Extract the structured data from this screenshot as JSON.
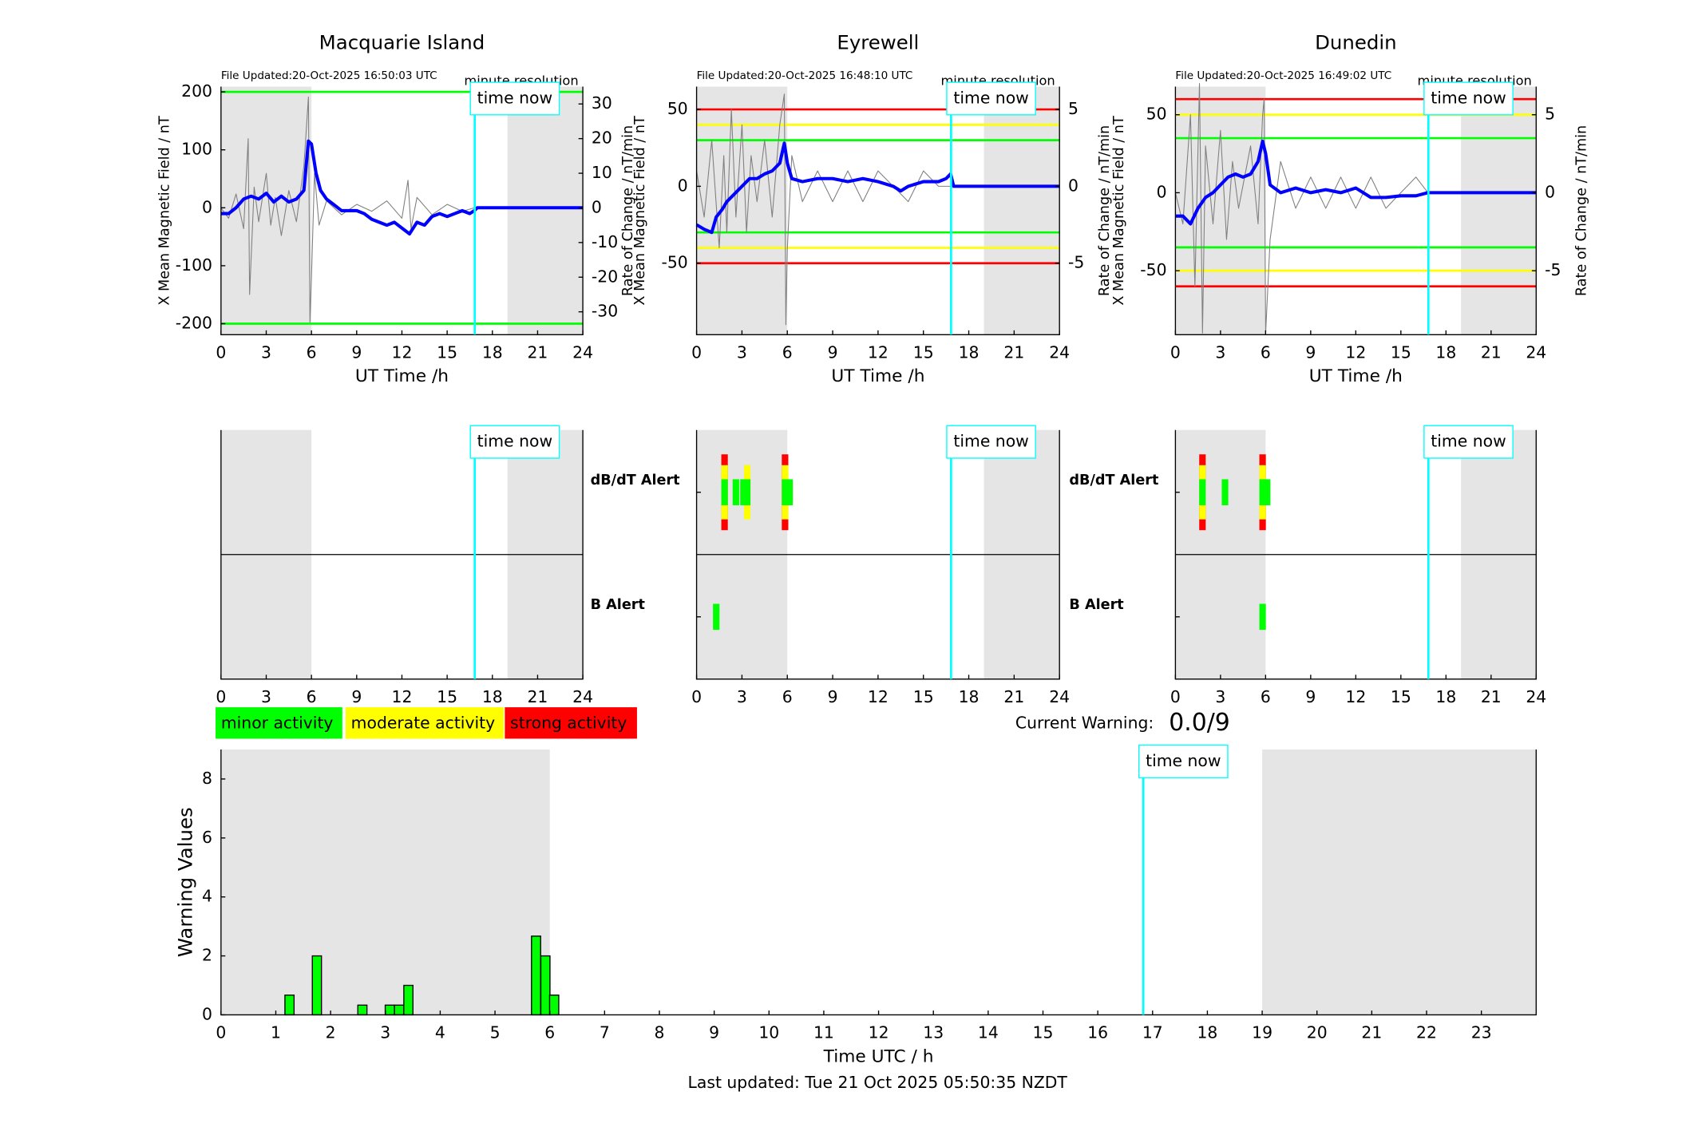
{
  "chart_data": [
    {
      "type": "line",
      "title": "Macquarie Island",
      "file_updated": "File Updated:20-Oct-2025 16:50:03 UTC",
      "resolution": "minute resolution",
      "xlabel": "UT Time /h",
      "ylabel": "X Mean Magnetic Field / nT",
      "y2label": "Rate of Change / nT/min",
      "xlim": [
        0,
        24
      ],
      "xticks": [
        0,
        3,
        6,
        9,
        12,
        15,
        18,
        21,
        24
      ],
      "ylim": [
        -219,
        209
      ],
      "yticks": [
        -200,
        -100,
        0,
        100,
        200
      ],
      "y2lim": [
        -36.6,
        35
      ],
      "y2ticks": [
        -30,
        -20,
        -10,
        0,
        10,
        20,
        30
      ],
      "shade": [
        [
          0,
          6
        ],
        [
          19,
          24
        ]
      ],
      "time_now": 16.83,
      "time_now_label": "time now",
      "time_now_color": "#00ffff",
      "thresholds": [
        {
          "value": 200,
          "color": "#00ff00"
        },
        {
          "value": -200,
          "color": "#00ff00"
        }
      ],
      "series": [
        {
          "axis": "y2",
          "color": "#808080",
          "x": [
            0,
            0.5,
            1,
            1.5,
            1.8,
            1.9,
            2.2,
            2.5,
            3,
            3.3,
            3.6,
            4,
            4.5,
            5,
            5.5,
            5.8,
            5.9,
            6.0,
            6.2,
            6.5,
            7,
            8,
            9,
            10,
            11,
            12,
            12.4,
            12.6,
            13,
            14,
            15,
            16,
            16.8
          ],
          "values": [
            0,
            -3,
            4,
            -6,
            20,
            -25,
            6,
            -4,
            10,
            -5,
            3,
            -8,
            5,
            -4,
            12,
            32,
            -33,
            -20,
            10,
            -5,
            2,
            -2,
            1,
            -1,
            2,
            -3,
            8,
            -6,
            3,
            -2,
            1,
            -1,
            0
          ]
        },
        {
          "axis": "y",
          "color": "#0000ff",
          "x": [
            0,
            0.5,
            1,
            1.5,
            2,
            2.5,
            3,
            3.5,
            4,
            4.5,
            5,
            5.5,
            5.8,
            6,
            6.3,
            6.6,
            7,
            7.5,
            8,
            8.5,
            9,
            9.5,
            10,
            10.5,
            11,
            11.5,
            12,
            12.5,
            13,
            13.5,
            14,
            14.5,
            15,
            15.5,
            16,
            16.5,
            16.8,
            17,
            24
          ],
          "values": [
            -10,
            -10,
            0,
            15,
            20,
            15,
            25,
            10,
            20,
            10,
            15,
            30,
            115,
            110,
            60,
            30,
            15,
            5,
            -5,
            -5,
            -5,
            -10,
            -20,
            -25,
            -30,
            -25,
            -35,
            -45,
            -25,
            -30,
            -15,
            -10,
            -15,
            -10,
            -5,
            -10,
            -5,
            0,
            0
          ]
        }
      ]
    },
    {
      "type": "line",
      "title": "Eyrewell",
      "file_updated": "File Updated:20-Oct-2025 16:48:10 UTC",
      "resolution": "minute resolution",
      "xlabel": "UT Time /h",
      "ylabel": "X Mean Magnetic Field / nT",
      "y2label": "Rate of Change / nT/min",
      "xlim": [
        0,
        24
      ],
      "xticks": [
        0,
        3,
        6,
        9,
        12,
        15,
        18,
        21,
        24
      ],
      "ylim": [
        -96.5,
        64.8
      ],
      "yticks": [
        -50,
        0,
        50
      ],
      "y2lim": [
        -9.65,
        6.48
      ],
      "y2ticks": [
        -5,
        0,
        5
      ],
      "shade": [
        [
          0,
          6
        ],
        [
          19,
          24
        ]
      ],
      "time_now": 16.83,
      "time_now_label": "time now",
      "time_now_color": "#00ffff",
      "thresholds": [
        {
          "value": 50,
          "color": "#ff0000"
        },
        {
          "value": 40,
          "color": "#ffff00"
        },
        {
          "value": 30,
          "color": "#00ff00"
        },
        {
          "value": -30,
          "color": "#00ff00"
        },
        {
          "value": -40,
          "color": "#ffff00"
        },
        {
          "value": -50,
          "color": "#ff0000"
        }
      ],
      "series": [
        {
          "axis": "y2",
          "color": "#808080",
          "x": [
            0,
            0.5,
            1,
            1.5,
            1.8,
            2,
            2.3,
            2.6,
            3,
            3.3,
            3.6,
            4,
            4.5,
            5,
            5.5,
            5.8,
            5.9,
            6,
            6.3,
            7,
            8,
            9,
            10,
            11,
            12,
            13,
            14,
            15,
            16,
            16.8
          ],
          "values": [
            1,
            -2,
            3,
            -4,
            2,
            -3,
            5,
            -2,
            4,
            -3,
            2,
            -1,
            3,
            -2,
            4,
            6,
            -9,
            -4,
            2,
            -1,
            1,
            -1,
            1,
            -1,
            1,
            0,
            -1,
            1,
            0,
            0
          ]
        },
        {
          "axis": "y",
          "color": "#0000ff",
          "x": [
            0,
            0.5,
            1,
            1.3,
            1.7,
            2,
            2.5,
            3,
            3.5,
            4,
            4.5,
            5,
            5.5,
            5.8,
            6,
            6.3,
            7,
            8,
            9,
            10,
            11,
            12,
            13,
            13.5,
            14,
            15,
            16,
            16.5,
            16.8,
            17,
            24
          ],
          "values": [
            -25,
            -28,
            -30,
            -20,
            -15,
            -10,
            -5,
            0,
            5,
            5,
            8,
            10,
            15,
            28,
            15,
            5,
            3,
            5,
            5,
            3,
            5,
            3,
            0,
            -3,
            0,
            3,
            3,
            5,
            8,
            0,
            0
          ]
        }
      ]
    },
    {
      "type": "line",
      "title": "Dunedin",
      "file_updated": "File Updated:20-Oct-2025 16:49:02 UTC",
      "resolution": "minute resolution",
      "xlabel": "UT Time /h",
      "ylabel": "X Mean Magnetic Field / nT",
      "y2label": "Rate of Change / nT/min",
      "xlim": [
        0,
        24
      ],
      "xticks": [
        0,
        3,
        6,
        9,
        12,
        15,
        18,
        21,
        24
      ],
      "ylim": [
        -91,
        68
      ],
      "yticks": [
        -50,
        0,
        50
      ],
      "y2lim": [
        -9.1,
        6.8
      ],
      "y2ticks": [
        -5,
        0,
        5
      ],
      "shade": [
        [
          0,
          6
        ],
        [
          19,
          24
        ]
      ],
      "time_now": 16.83,
      "time_now_label": "time now",
      "time_now_color": "#00ffff",
      "thresholds": [
        {
          "value": 60,
          "color": "#ff0000"
        },
        {
          "value": 50,
          "color": "#ffff00"
        },
        {
          "value": 35,
          "color": "#00ff00"
        },
        {
          "value": -35,
          "color": "#00ff00"
        },
        {
          "value": -50,
          "color": "#ffff00"
        },
        {
          "value": -60,
          "color": "#ff0000"
        }
      ],
      "series": [
        {
          "axis": "y2",
          "color": "#808080",
          "x": [
            0,
            0.5,
            1,
            1.3,
            1.6,
            1.8,
            2,
            2.5,
            3,
            3.4,
            3.8,
            4.2,
            5,
            5.5,
            5.8,
            5.9,
            6,
            6.3,
            7,
            8,
            9,
            10,
            11,
            12,
            13,
            14,
            15,
            16,
            16.8
          ],
          "values": [
            0,
            -2,
            5,
            -6,
            7,
            -9,
            3,
            -2,
            4,
            -3,
            2,
            -1,
            3,
            -2,
            5,
            6,
            -9,
            -3,
            2,
            -1,
            1,
            -1,
            1,
            -1,
            1,
            -1,
            0,
            1,
            0
          ]
        },
        {
          "axis": "y",
          "color": "#0000ff",
          "x": [
            0,
            0.5,
            1,
            1.5,
            2,
            2.5,
            3,
            3.5,
            4,
            4.5,
            5,
            5.5,
            5.8,
            6,
            6.3,
            7,
            8,
            9,
            10,
            11,
            12,
            13,
            14,
            15,
            16,
            16.8,
            17,
            24
          ],
          "values": [
            -15,
            -15,
            -20,
            -10,
            -3,
            0,
            5,
            10,
            12,
            10,
            12,
            20,
            33,
            25,
            5,
            0,
            3,
            0,
            2,
            0,
            3,
            -3,
            -3,
            -2,
            -2,
            0,
            0,
            0
          ]
        }
      ]
    },
    {
      "type": "alert",
      "xlim": [
        0,
        24
      ],
      "xticks": [
        0,
        3,
        6,
        9,
        12,
        15,
        18,
        21,
        24
      ],
      "shade": [
        [
          0,
          6
        ],
        [
          19,
          24
        ]
      ],
      "time_now": 16.83,
      "time_now_label": "time now",
      "time_now_color": "#00ffff"
    },
    {
      "type": "alert",
      "xlim": [
        0,
        24
      ],
      "xticks": [
        0,
        3,
        6,
        9,
        12,
        15,
        18,
        21,
        24
      ],
      "shade": [
        [
          0,
          6
        ],
        [
          19,
          24
        ]
      ],
      "time_now": 16.83,
      "time_now_label": "time now",
      "time_now_color": "#00ffff",
      "series": [
        {
          "name": "dB/dT Alert",
          "color": "#000000",
          "x": [
            1.85,
            2.6,
            3.1,
            3.35,
            5.85,
            6.15
          ],
          "values": [
            3,
            1,
            1,
            2,
            3,
            1
          ]
        },
        {
          "name": "B Alert",
          "color": "#0000ff",
          "x": [
            1.3
          ],
          "values": [
            1
          ]
        }
      ]
    },
    {
      "type": "alert",
      "xlim": [
        0,
        24
      ],
      "xticks": [
        0,
        3,
        6,
        9,
        12,
        15,
        18,
        21,
        24
      ],
      "shade": [
        [
          0,
          6
        ],
        [
          19,
          24
        ]
      ],
      "time_now": 16.83,
      "time_now_label": "time now",
      "time_now_color": "#00ffff",
      "series": [
        {
          "name": "dB/dT Alert",
          "color": "#000000",
          "x": [
            1.8,
            3.3,
            5.8,
            6.1
          ],
          "values": [
            3,
            1,
            3,
            1
          ]
        },
        {
          "name": "B Alert",
          "color": "#0000ff",
          "x": [
            5.8
          ],
          "values": [
            1
          ]
        }
      ]
    },
    {
      "type": "bar",
      "xlabel": "Time UTC / h",
      "ylabel": "Warning Values",
      "xlim": [
        0,
        24
      ],
      "xticks": [
        0,
        1,
        2,
        3,
        4,
        5,
        6,
        7,
        8,
        9,
        10,
        11,
        12,
        13,
        14,
        15,
        16,
        17,
        18,
        19,
        20,
        21,
        22,
        23
      ],
      "ylim": [
        0,
        9
      ],
      "yticks": [
        0,
        2,
        4,
        6,
        8
      ],
      "shade": [
        [
          0,
          6
        ],
        [
          19,
          24
        ]
      ],
      "time_now": 16.83,
      "time_now_label": "time now",
      "time_now_color": "#00ffff",
      "color": "#00ff00",
      "x": [
        1.25,
        1.75,
        2.58,
        3.08,
        3.25,
        3.42,
        5.75,
        5.92,
        6.08
      ],
      "values": [
        0.67,
        2,
        0.33,
        0.33,
        0.33,
        1,
        2.67,
        2,
        0.67
      ],
      "legend": [
        {
          "label": "minor activity",
          "color": "#00ff00"
        },
        {
          "label": "moderate activity",
          "color": "#ffff00"
        },
        {
          "label": "strong activity",
          "color": "#ff0000"
        }
      ],
      "current_warning_label": "Current Warning:",
      "current_warning": "0.0/9",
      "footer": "Last updated: Tue 21 Oct 2025 05:50:35 NZDT"
    }
  ]
}
